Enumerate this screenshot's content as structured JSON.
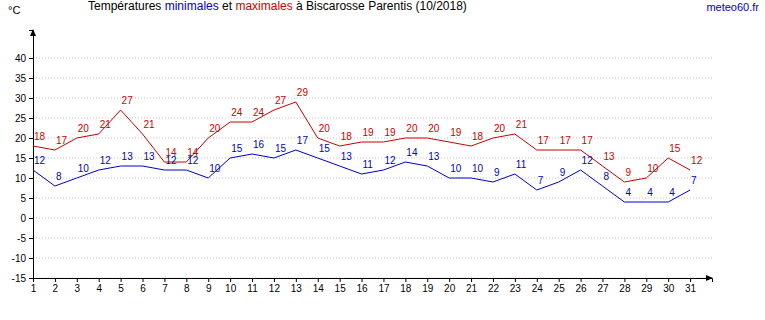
{
  "chart_data": {
    "type": "line",
    "title": "Températures minimales et maximales à Biscarosse Parentis (10/2018)",
    "source": "meteo60.fr",
    "y_label": "°C",
    "x": [
      1,
      2,
      3,
      4,
      5,
      6,
      7,
      8,
      9,
      10,
      11,
      12,
      13,
      14,
      15,
      16,
      17,
      18,
      19,
      20,
      21,
      22,
      23,
      24,
      25,
      26,
      27,
      28,
      29,
      30,
      31
    ],
    "series": [
      {
        "name": "minimales",
        "color": "#0000cc",
        "values": [
          12,
          8,
          10,
          12,
          13,
          13,
          12,
          12,
          10,
          15,
          16,
          15,
          17,
          15,
          13,
          11,
          12,
          14,
          13,
          10,
          10,
          9,
          11,
          7,
          9,
          12,
          8,
          4,
          4,
          4,
          7
        ]
      },
      {
        "name": "maximales",
        "color": "#cc0000",
        "values": [
          18,
          17,
          20,
          21,
          27,
          21,
          14,
          14,
          20,
          24,
          24,
          27,
          29,
          20,
          18,
          19,
          19,
          20,
          20,
          19,
          18,
          20,
          21,
          17,
          17,
          17,
          13,
          9,
          10,
          15,
          12
        ]
      }
    ],
    "xlim": [
      1,
      32
    ],
    "xticks": [
      1,
      2,
      3,
      4,
      5,
      6,
      7,
      8,
      9,
      10,
      11,
      12,
      13,
      14,
      15,
      16,
      17,
      18,
      19,
      20,
      21,
      22,
      23,
      24,
      25,
      26,
      27,
      28,
      29,
      30,
      31
    ],
    "ylim": [
      -15,
      47
    ],
    "yticks": [
      -15,
      -10,
      -5,
      0,
      5,
      10,
      15,
      20,
      25,
      30,
      35,
      40
    ],
    "grid": true,
    "data_labels": true,
    "line_style": "solid",
    "marker": "none"
  }
}
